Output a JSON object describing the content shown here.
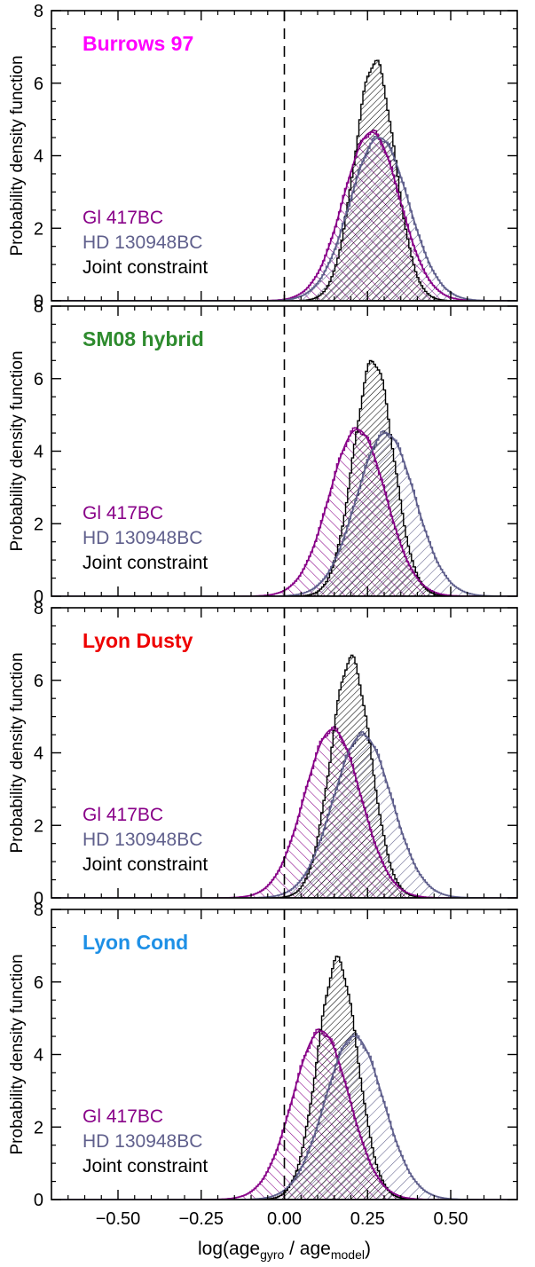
{
  "chart_data": {
    "type": "histogram",
    "figure_xlabel": {
      "main": "log(age",
      "sub1": "gyro",
      "mid": " / age",
      "sub2": "model",
      "close": ")"
    },
    "x_ticks": [
      -0.5,
      -0.25,
      0.0,
      0.25,
      0.5
    ],
    "x_tick_labels": [
      "−0.50",
      "−0.25",
      "0.00",
      "0.25",
      "0.50"
    ],
    "xlim": [
      -0.7,
      0.7
    ],
    "colors": {
      "gl": "#880088",
      "hd": "#5f5f8c",
      "joint": "#000000",
      "dashed_line": "#000000"
    },
    "panels": [
      {
        "title": "Burrows 97",
        "title_color": "#ff00ff",
        "ylabel": "Probability density function",
        "ylim": [
          0,
          8
        ],
        "y_ticks": [
          0,
          2,
          4,
          6,
          8
        ],
        "y_tick_labels": [
          "0",
          "2",
          "4",
          "6",
          "8"
        ],
        "legend": [
          "Gl 417BC",
          "HD 130948BC",
          "Joint constraint"
        ],
        "series": [
          {
            "name": "Gl 417BC",
            "mean": 0.262,
            "sigma": 0.085,
            "peak": 4.65
          },
          {
            "name": "HD 130948BC",
            "mean": 0.285,
            "sigma": 0.088,
            "peak": 4.5
          },
          {
            "name": "Joint constraint",
            "mean": 0.272,
            "sigma": 0.06,
            "peak": 6.6
          }
        ]
      },
      {
        "title": "SM08 hybrid",
        "title_color": "#2e8b2e",
        "ylabel": "Probability density function",
        "ylim": [
          0,
          8
        ],
        "y_ticks": [
          0,
          2,
          4,
          6,
          8
        ],
        "y_tick_labels": [
          "0",
          "2",
          "4",
          "6",
          "8"
        ],
        "legend": [
          "Gl 417BC",
          "HD 130948BC",
          "Joint constraint"
        ],
        "series": [
          {
            "name": "Gl 417BC",
            "mean": 0.22,
            "sigma": 0.085,
            "peak": 4.6
          },
          {
            "name": "HD 130948BC",
            "mean": 0.305,
            "sigma": 0.088,
            "peak": 4.5
          },
          {
            "name": "Joint constraint",
            "mean": 0.268,
            "sigma": 0.06,
            "peak": 6.5
          }
        ]
      },
      {
        "title": "Lyon Dusty",
        "title_color": "#ee0000",
        "ylabel": "Probability density function",
        "ylim": [
          0,
          8
        ],
        "y_ticks": [
          0,
          2,
          4,
          6,
          8
        ],
        "y_tick_labels": [
          "0",
          "2",
          "4",
          "6",
          "8"
        ],
        "legend": [
          "Gl 417BC",
          "HD 130948BC",
          "Joint constraint"
        ],
        "series": [
          {
            "name": "Gl 417BC",
            "mean": 0.145,
            "sigma": 0.085,
            "peak": 4.65
          },
          {
            "name": "HD 130948BC",
            "mean": 0.235,
            "sigma": 0.088,
            "peak": 4.5
          },
          {
            "name": "Joint constraint",
            "mean": 0.2,
            "sigma": 0.06,
            "peak": 6.6
          }
        ]
      },
      {
        "title": "Lyon Cond",
        "title_color": "#1e90e6",
        "ylabel": "Probability density function",
        "ylim": [
          0,
          8
        ],
        "y_ticks": [
          0,
          2,
          4,
          6,
          8
        ],
        "y_tick_labels": [
          "0",
          "2",
          "4",
          "6",
          "8"
        ],
        "legend": [
          "Gl 417BC",
          "HD 130948BC",
          "Joint constraint"
        ],
        "series": [
          {
            "name": "Gl 417BC",
            "mean": 0.11,
            "sigma": 0.085,
            "peak": 4.65
          },
          {
            "name": "HD 130948BC",
            "mean": 0.21,
            "sigma": 0.088,
            "peak": 4.5
          },
          {
            "name": "Joint constraint",
            "mean": 0.16,
            "sigma": 0.06,
            "peak": 6.6
          }
        ]
      }
    ]
  }
}
